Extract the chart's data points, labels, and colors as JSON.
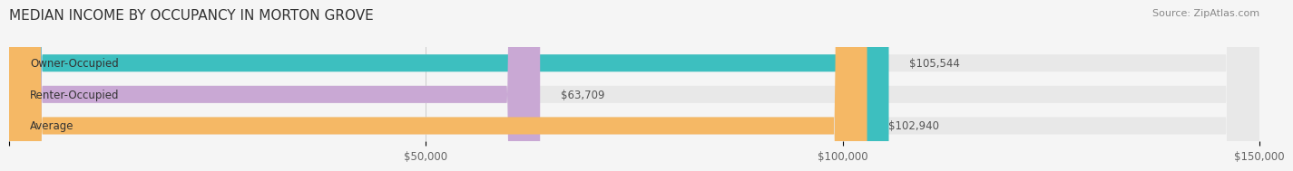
{
  "title": "MEDIAN INCOME BY OCCUPANCY IN MORTON GROVE",
  "source": "Source: ZipAtlas.com",
  "categories": [
    "Owner-Occupied",
    "Renter-Occupied",
    "Average"
  ],
  "values": [
    105544,
    63709,
    102940
  ],
  "bar_colors": [
    "#3dbfbf",
    "#c9a8d4",
    "#f5b865"
  ],
  "bar_bg_color": "#e8e8e8",
  "value_labels": [
    "$105,544",
    "$63,709",
    "$102,940"
  ],
  "xlim": [
    0,
    150000
  ],
  "xticks": [
    0,
    50000,
    100000,
    150000
  ],
  "xticklabels": [
    "",
    "$50,000",
    "$100,000",
    "$150,000"
  ],
  "title_fontsize": 11,
  "label_fontsize": 8.5,
  "source_fontsize": 8,
  "bar_height": 0.55,
  "background_color": "#f5f5f5"
}
